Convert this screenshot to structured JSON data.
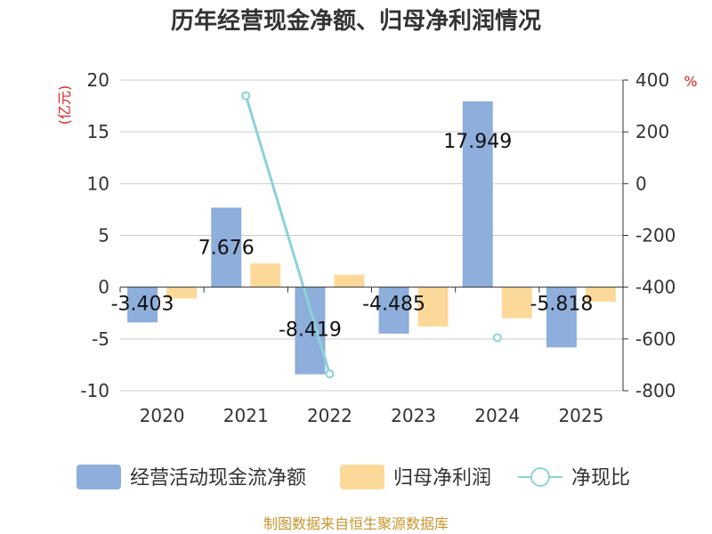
{
  "chart_data": {
    "type": "bar",
    "title": "历年经营现金净额、归母净利润情况",
    "categories": [
      "2020",
      "2021",
      "2022",
      "2023",
      "2024",
      "2025"
    ],
    "left_axis": {
      "unit": "(亿元)",
      "ylim": [
        -10,
        20
      ],
      "ticks": [
        20,
        15,
        10,
        5,
        0,
        -5,
        -10
      ]
    },
    "right_axis": {
      "unit": "%",
      "ylim": [
        -800,
        400
      ],
      "ticks": [
        400,
        200,
        0,
        -200,
        -400,
        -600,
        -800
      ]
    },
    "series": [
      {
        "name": "经营活动现金流净额",
        "type": "bar",
        "axis": "left",
        "color": "#8eaedb",
        "values": [
          -3.403,
          7.676,
          -8.419,
          -4.485,
          17.949,
          -5.818
        ],
        "labels": [
          "-3.403",
          "7.676",
          "-8.419",
          "-4.485",
          "17.949",
          "-5.818"
        ]
      },
      {
        "name": "归母净利润",
        "type": "bar",
        "axis": "left",
        "color": "#fdd999",
        "values": [
          -1.1,
          2.3,
          1.2,
          -3.8,
          -3.0,
          -1.4
        ]
      },
      {
        "name": "净现比",
        "type": "line",
        "axis": "right",
        "color": "#8ad3d8",
        "values": [
          null,
          340,
          -735,
          null,
          -595,
          null
        ]
      }
    ],
    "source": "制图数据来自恒生聚源数据库"
  }
}
